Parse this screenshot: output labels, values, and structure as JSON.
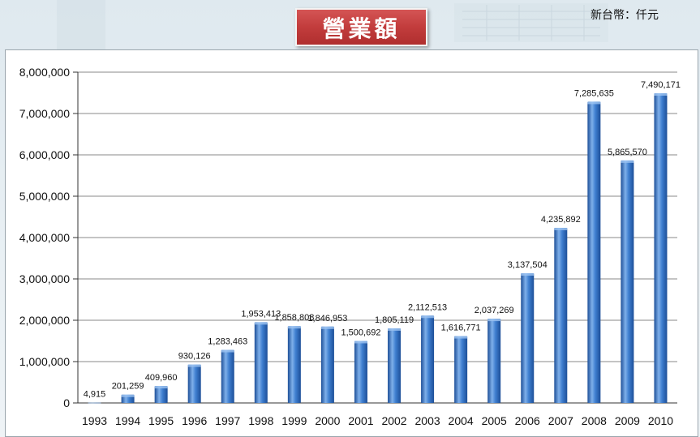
{
  "header": {
    "title": "營業額",
    "unit": "新台幣：仟元"
  },
  "colors": {
    "bar_light": "#7fb0ea",
    "bar_mid": "#3f7fd0",
    "bar_dark": "#1d4f98",
    "title_bg": "#c23c3c",
    "grid": "#8a8a8a"
  },
  "chart_data": {
    "type": "bar",
    "title": "營業額",
    "ylabel": "",
    "xlabel": "",
    "ylim": [
      0,
      8000000
    ],
    "grid": true,
    "y_ticks": [
      0,
      1000000,
      2000000,
      3000000,
      4000000,
      5000000,
      6000000,
      7000000,
      8000000
    ],
    "y_tick_labels": [
      "0",
      "1,000,000",
      "2,000,000",
      "3,000,000",
      "4,000,000",
      "5,000,000",
      "6,000,000",
      "7,000,000",
      "8,000,000"
    ],
    "categories": [
      "1993",
      "1994",
      "1995",
      "1996",
      "1997",
      "1998",
      "1999",
      "2000",
      "2001",
      "2002",
      "2003",
      "2004",
      "2005",
      "2006",
      "2007",
      "2008",
      "2009",
      "2010"
    ],
    "values": [
      4915,
      201259,
      409960,
      930126,
      1283463,
      1953413,
      1858808,
      1846953,
      1500692,
      1805119,
      2112513,
      1616771,
      2037269,
      3137504,
      4235892,
      7285635,
      5865570,
      7490171
    ],
    "value_labels": [
      "4,915",
      "201,259",
      "409,960",
      "930,126",
      "1,283,463",
      "1,953,413",
      "1,858,808",
      "1,846,953",
      "1,500,692",
      "1,805,119",
      "2,112,513",
      "1,616,771",
      "2,037,269",
      "3,137,504",
      "4,235,892",
      "7,285,635",
      "5,865,570",
      "7,490,171"
    ]
  }
}
